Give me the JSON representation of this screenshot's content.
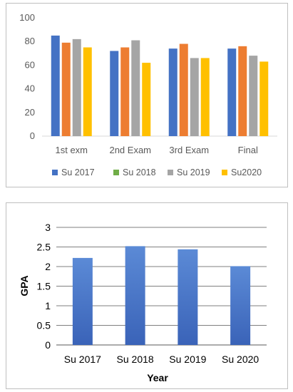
{
  "chart_data": [
    {
      "type": "bar",
      "categories": [
        "1st exm",
        "2nd Exam",
        "3rd Exam",
        "Final"
      ],
      "series": [
        {
          "name": "Su 2017",
          "values": [
            85,
            72,
            74,
            74
          ],
          "color": "#4472c4"
        },
        {
          "name": "Su 2018",
          "values": [
            79,
            75,
            78,
            76
          ],
          "color": "#ed7d31"
        },
        {
          "name": "Su 2019",
          "values": [
            82,
            81,
            66,
            68
          ],
          "color": "#a5a5a5"
        },
        {
          "name": "Su2020",
          "values": [
            75,
            62,
            66,
            63
          ],
          "color": "#ffc000"
        }
      ],
      "legend_swatch_colors": [
        "#4472c4",
        "#70ad47",
        "#a5a5a5",
        "#ffc000"
      ],
      "ylim": [
        0,
        100
      ],
      "yticks": [
        "0",
        "20",
        "40",
        "60",
        "80",
        "100"
      ],
      "grid": false,
      "legend_position": "bottom"
    },
    {
      "type": "bar",
      "categories": [
        "Su 2017",
        "Su 2018",
        "Su 2019",
        "Su 2020"
      ],
      "values": [
        2.22,
        2.52,
        2.44,
        2.01
      ],
      "color": "#4472c4",
      "ylabel": "GPA",
      "xlabel": "Year",
      "ylim": [
        0,
        3
      ],
      "yticks": [
        "0",
        "0.5",
        "1",
        "1.5",
        "2",
        "2.5",
        "3"
      ],
      "grid": true
    }
  ]
}
